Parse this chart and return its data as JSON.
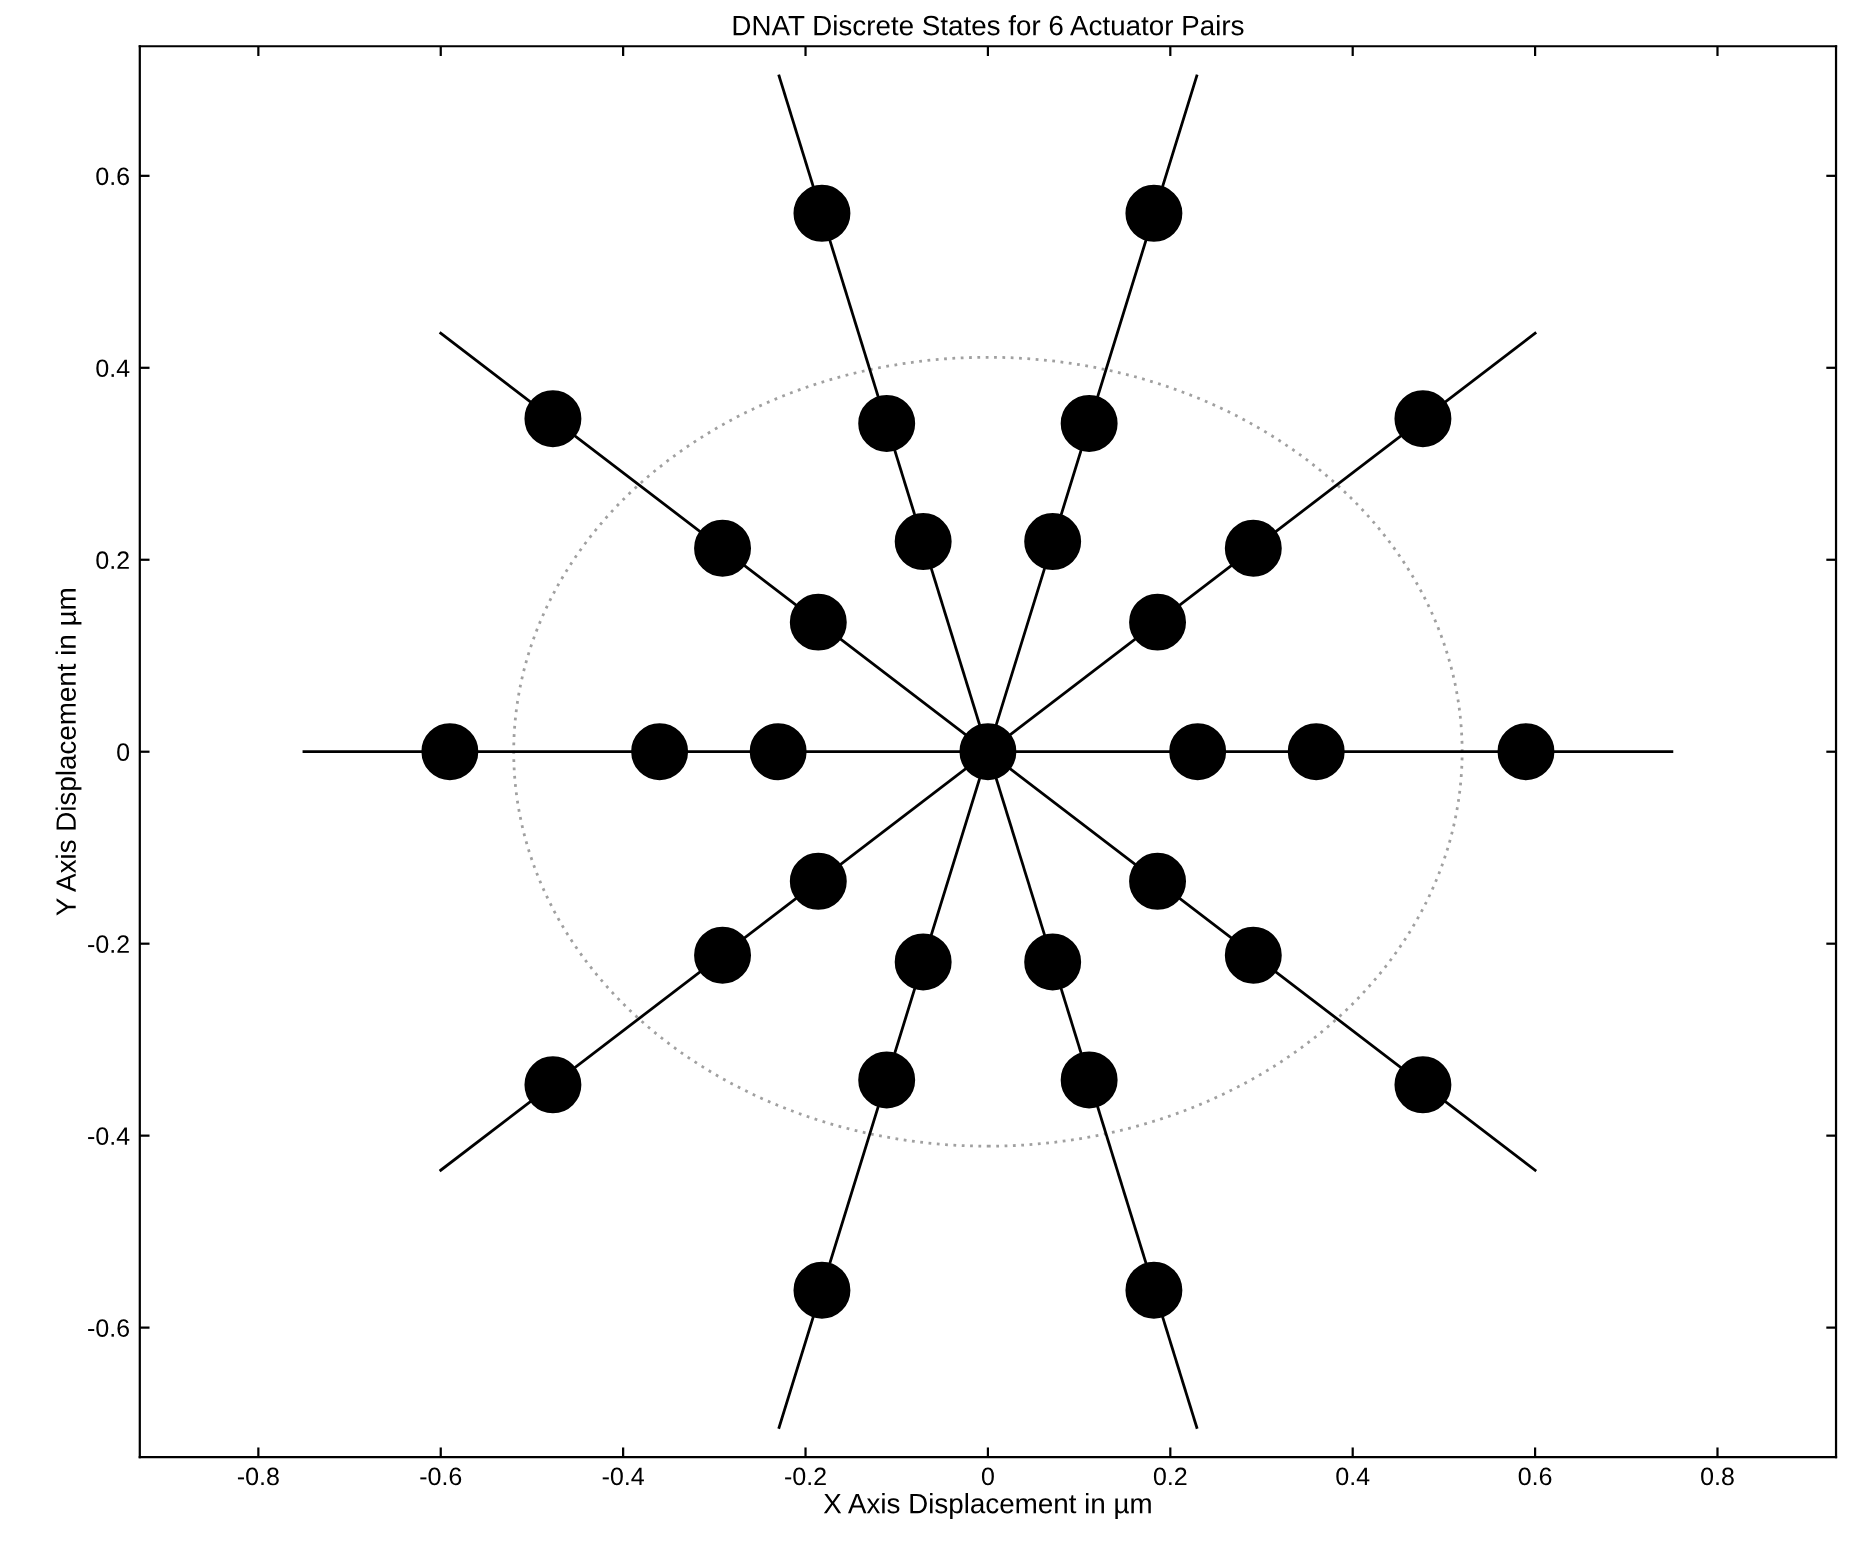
{
  "chart_data": {
    "type": "scatter",
    "title": "DNAT Discrete States for 6 Actuator Pairs",
    "xlabel": "X Axis Displacement in µm",
    "ylabel": "Y Axis Displacement in µm",
    "xlim": [
      -0.93,
      0.93
    ],
    "ylim": [
      -0.735,
      0.735
    ],
    "xticks": [
      -0.8,
      -0.6,
      -0.4,
      -0.2,
      0,
      0.2,
      0.4,
      0.6,
      0.8
    ],
    "yticks": [
      -0.6,
      -0.4,
      -0.2,
      0,
      0.2,
      0.4,
      0.6
    ],
    "grid": false,
    "legend": false,
    "series": [
      {
        "type": "line",
        "color": "#000000",
        "line_style": "solid",
        "marker": "none",
        "x": [
          -0.75,
          0.75
        ],
        "values": [
          0,
          0
        ]
      },
      {
        "type": "line",
        "color": "#000000",
        "line_style": "solid",
        "marker": "none",
        "x": [
          -0.6,
          0.6
        ],
        "values": [
          -0.436,
          0.436
        ]
      },
      {
        "type": "line",
        "color": "#000000",
        "line_style": "solid",
        "marker": "none",
        "x": [
          -0.229,
          0.229
        ],
        "values": [
          -0.704,
          0.704
        ]
      },
      {
        "type": "line",
        "color": "#000000",
        "line_style": "solid",
        "marker": "none",
        "x": [
          0.229,
          -0.229
        ],
        "values": [
          -0.704,
          0.704
        ]
      },
      {
        "type": "line",
        "color": "#000000",
        "line_style": "solid",
        "marker": "none",
        "x": [
          0.6,
          -0.6
        ],
        "values": [
          -0.436,
          0.436
        ]
      },
      {
        "color": "#000000",
        "marker": "circle",
        "x": [
          0,
          0.23,
          0.186,
          0.071,
          -0.071,
          -0.186,
          -0.23,
          -0.186,
          -0.071,
          0.071,
          0.186,
          0.36,
          0.291,
          0.111,
          -0.111,
          -0.291,
          -0.36,
          -0.291,
          -0.111,
          0.111,
          0.291,
          0.59,
          0.477,
          0.182,
          -0.182,
          -0.477,
          -0.59,
          -0.477,
          -0.182,
          0.182,
          0.477
        ],
        "values": [
          0,
          0,
          0.135,
          0.219,
          0.219,
          0.135,
          0,
          -0.135,
          -0.219,
          -0.219,
          -0.135,
          0,
          0.212,
          0.342,
          0.342,
          0.212,
          0,
          -0.212,
          -0.342,
          -0.342,
          -0.212,
          0,
          0.347,
          0.561,
          0.561,
          0.347,
          0,
          -0.347,
          -0.561,
          -0.561,
          -0.347
        ]
      }
    ]
  }
}
